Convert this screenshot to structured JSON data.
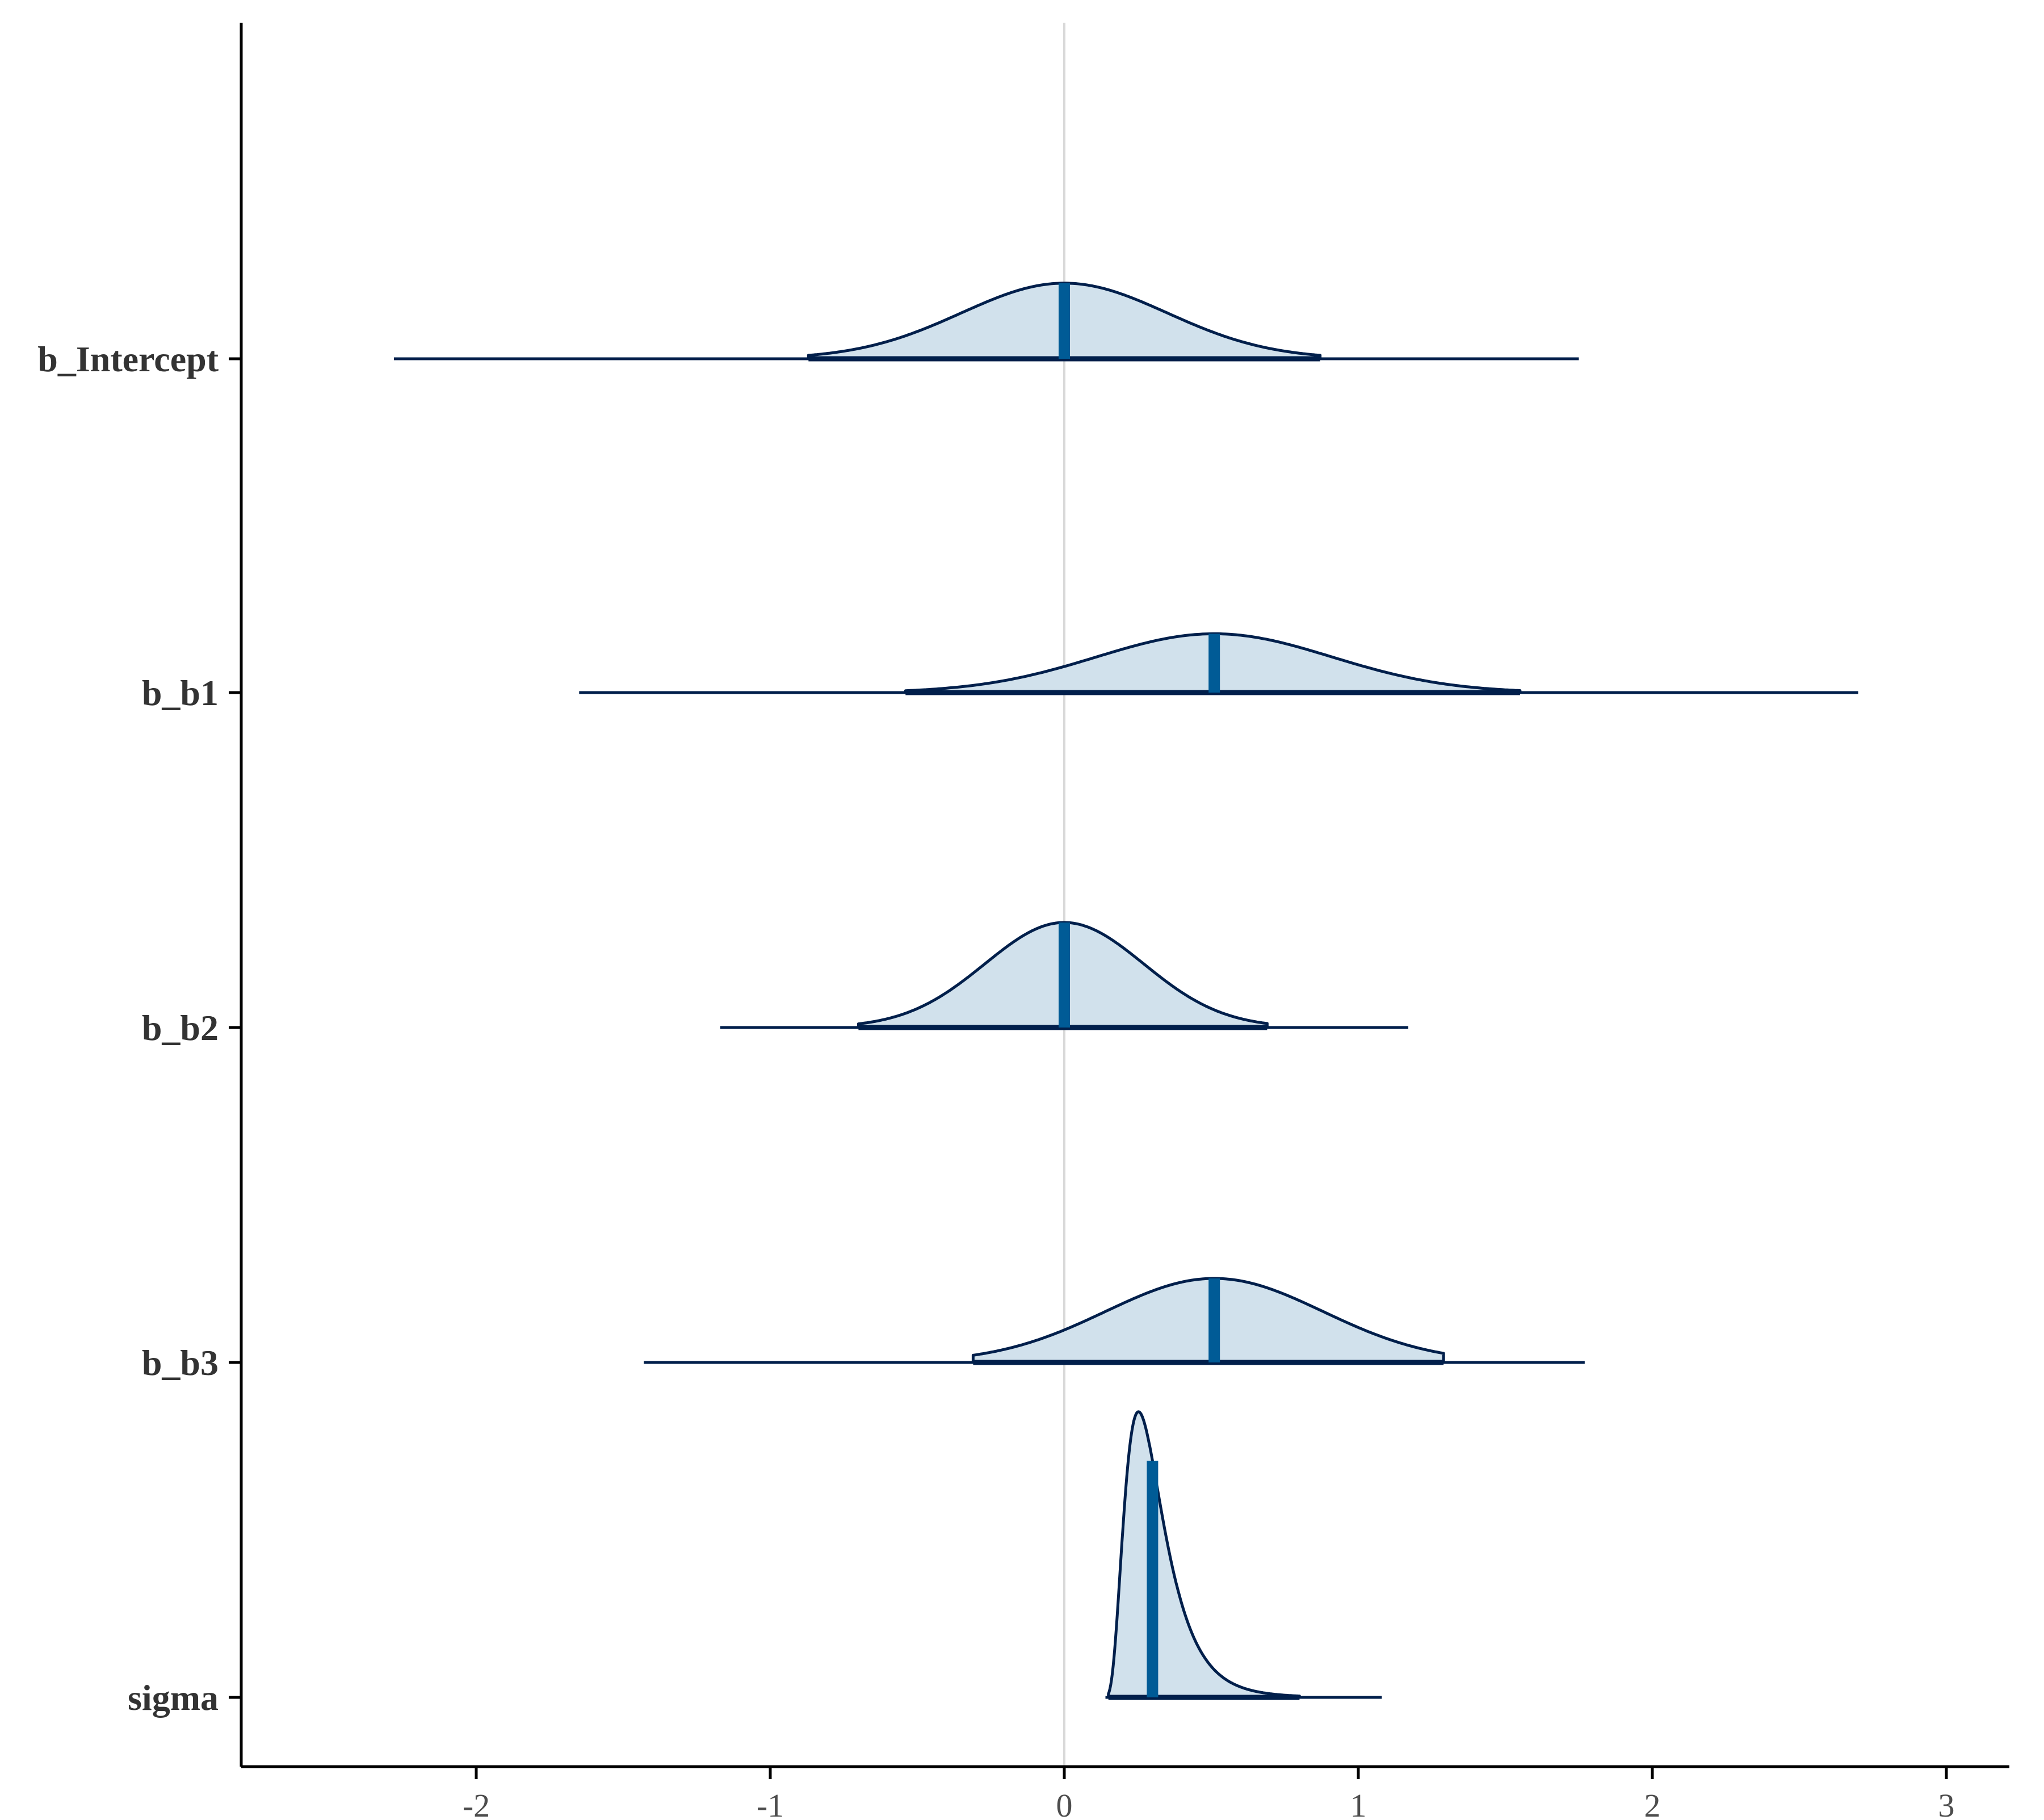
{
  "chart_data": {
    "type": "ridgeline",
    "title": "",
    "xlabel": "",
    "ylabel": "",
    "xlim": [
      -2.8,
      3.2
    ],
    "xticks": [
      -2,
      -1,
      0,
      1,
      2,
      3
    ],
    "xtick_labels": [
      "-2",
      "-1",
      "0",
      "1",
      "2",
      "3"
    ],
    "reference_line_x": 0,
    "parameters": [
      "b_Intercept",
      "b_b1",
      "b_b2",
      "b_b3",
      "sigma"
    ],
    "series": [
      {
        "name": "b_Intercept",
        "kind": "normal",
        "median": 0.0,
        "sd": 0.35,
        "inner": [
          -0.87,
          0.87
        ],
        "outer": [
          -2.28,
          1.75
        ],
        "height": 0.9
      },
      {
        "name": "b_b1",
        "kind": "normal",
        "median": 0.51,
        "sd": 0.4,
        "inner": [
          -0.54,
          1.55
        ],
        "outer": [
          -1.65,
          2.7
        ],
        "height": 0.7
      },
      {
        "name": "b_b2",
        "kind": "normal",
        "median": 0.0,
        "sd": 0.27,
        "inner": [
          -0.7,
          0.69
        ],
        "outer": [
          -1.17,
          1.17
        ],
        "height": 1.25
      },
      {
        "name": "b_b3",
        "kind": "normal",
        "median": 0.51,
        "sd": 0.37,
        "inner": [
          -0.31,
          1.29
        ],
        "outer": [
          -1.43,
          1.77
        ],
        "height": 1.0
      },
      {
        "name": "sigma",
        "kind": "skewed",
        "median": 0.3,
        "mode": 0.28,
        "inner": [
          0.15,
          0.8
        ],
        "outer": [
          0.14,
          1.08
        ],
        "height": 3.4
      }
    ],
    "colors": {
      "fill": "#d1e1ec",
      "outline": "#011f4b",
      "median": "#005b96",
      "interval": "#011f4b",
      "reference": "#d9d9d9",
      "axis": "#000000"
    }
  }
}
